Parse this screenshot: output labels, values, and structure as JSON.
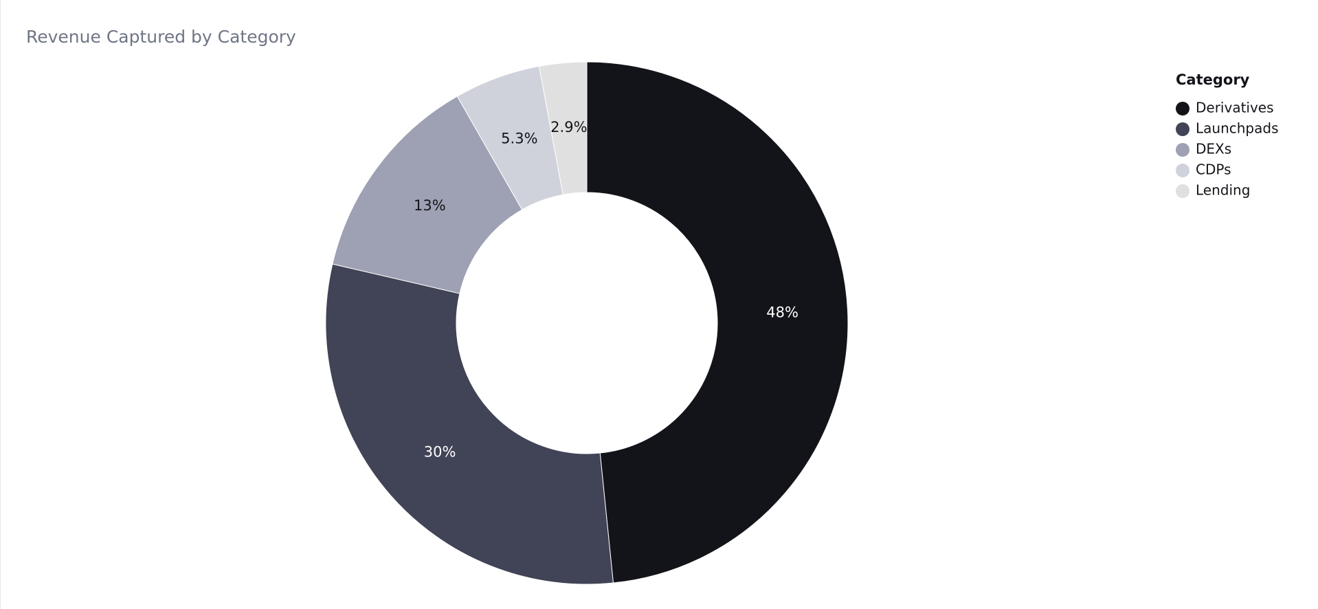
{
  "chart_data": {
    "type": "donut",
    "title": "Revenue Captured by Category",
    "legend_title": "Category",
    "legend_position": "top-right",
    "categories": [
      "Derivatives",
      "Launchpads",
      "DEXs",
      "CDPs",
      "Lending"
    ],
    "values": [
      48,
      30,
      13,
      5.3,
      2.9
    ],
    "value_labels": [
      "48%",
      "30%",
      "13%",
      "5.3%",
      "2.9%"
    ],
    "colors": [
      "#131419",
      "#414356",
      "#9ea1b3",
      "#d0d2db",
      "#e0e0e0"
    ]
  }
}
